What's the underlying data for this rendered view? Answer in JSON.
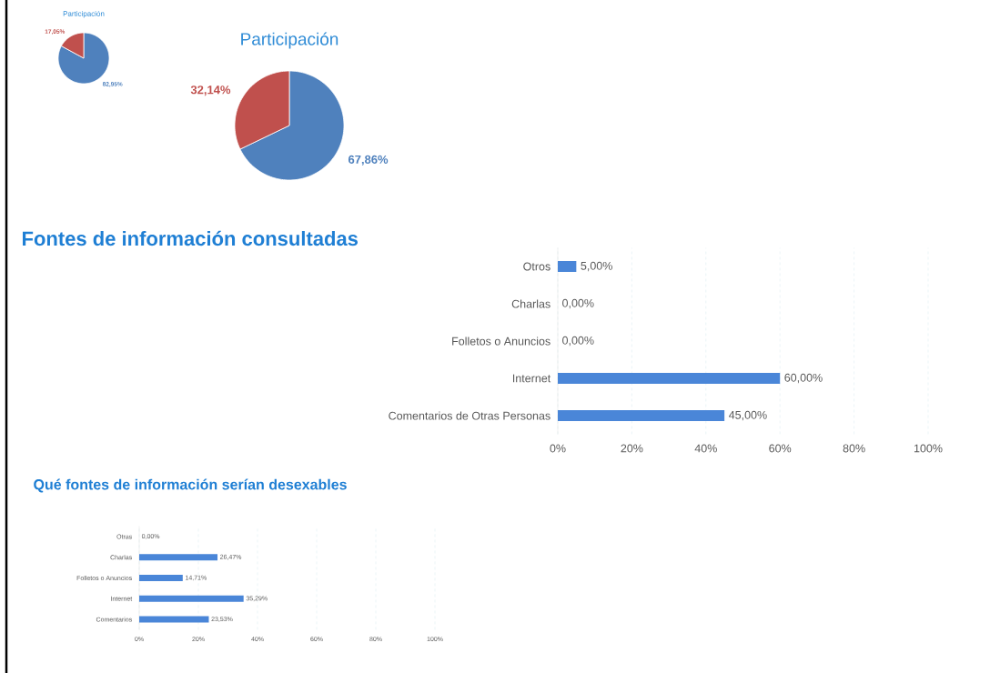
{
  "chart_data": [
    {
      "type": "pie",
      "title": "Participación",
      "categories": [
        null,
        null
      ],
      "values": [
        82.95,
        17.05
      ],
      "colors": [
        "#4f81bd",
        "#c0504d"
      ],
      "value_labels": [
        "82,95%",
        "17,05%"
      ]
    },
    {
      "type": "pie",
      "title": "Participación",
      "categories": [
        null,
        null
      ],
      "values": [
        67.86,
        32.14
      ],
      "colors": [
        "#4f81bd",
        "#c0504d"
      ],
      "value_labels": [
        "67,86%",
        "32,14%"
      ]
    },
    {
      "type": "bar",
      "orientation": "horizontal",
      "title": "Fontes de información consultadas",
      "categories": [
        "Otros",
        "Charlas",
        "Folletos o Anuncios",
        "Internet",
        "Comentarios de Otras Personas"
      ],
      "values": [
        5,
        0,
        0,
        60,
        45
      ],
      "value_labels": [
        "5,00%",
        "0,00%",
        "0,00%",
        "60,00%",
        "45,00%"
      ],
      "color": "#4a86d8",
      "xlim": [
        0,
        100
      ],
      "xticks": [
        {
          "value": 0,
          "label": "0%"
        },
        {
          "value": 20,
          "label": "20%"
        },
        {
          "value": 40,
          "label": "40%"
        },
        {
          "value": 60,
          "label": "60%"
        },
        {
          "value": 80,
          "label": "80%"
        },
        {
          "value": 100,
          "label": "100%"
        }
      ],
      "grid": "x"
    },
    {
      "type": "bar",
      "orientation": "horizontal",
      "title": "Qué fontes de información serían desexables",
      "categories": [
        "Otras",
        "Charlas",
        "Folletos o Anuncios",
        "Internet",
        "Comentarios"
      ],
      "values": [
        0,
        26.47,
        14.71,
        35.29,
        23.53
      ],
      "value_labels": [
        "0,00%",
        "26,47%",
        "14,71%",
        "35,29%",
        "23,53%"
      ],
      "color": "#4a86d8",
      "xlim": [
        0,
        100
      ],
      "xticks": [
        {
          "value": 0,
          "label": "0%"
        },
        {
          "value": 20,
          "label": "20%"
        },
        {
          "value": 40,
          "label": "40%"
        },
        {
          "value": 60,
          "label": "60%"
        },
        {
          "value": 80,
          "label": "80%"
        },
        {
          "value": 100,
          "label": "100%"
        }
      ],
      "grid": "x"
    }
  ]
}
